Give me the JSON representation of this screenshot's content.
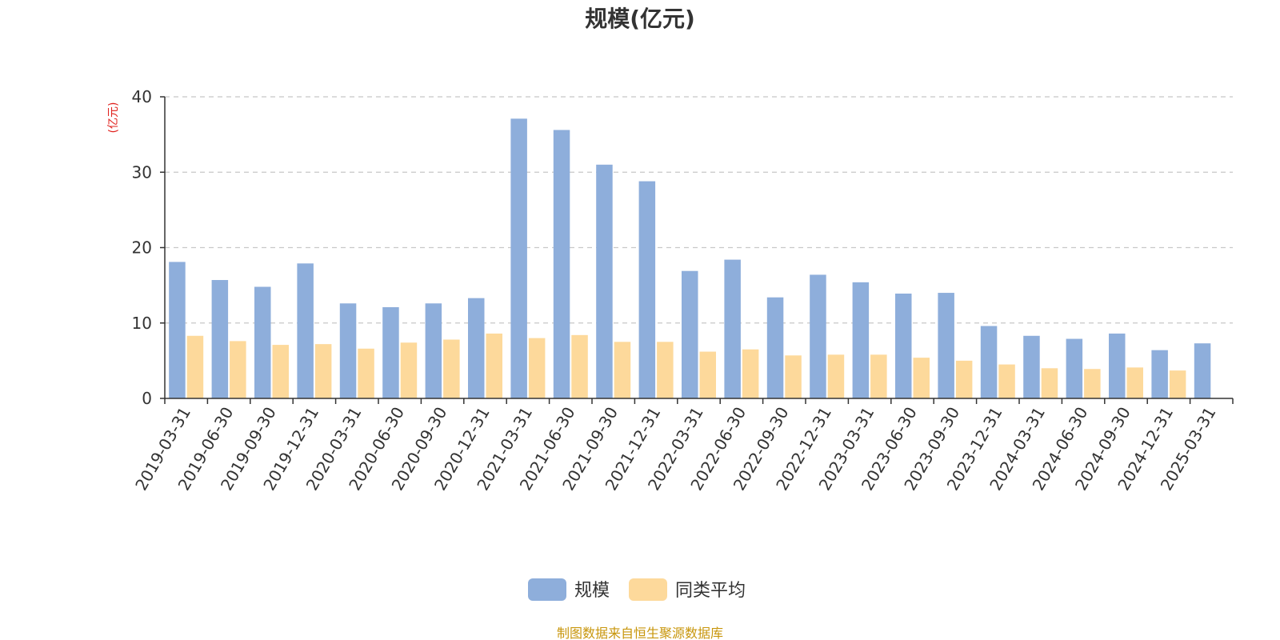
{
  "chart_data": {
    "type": "bar",
    "title": "规模(亿元)",
    "ylabel": "(亿元)",
    "ylim": [
      0,
      40
    ],
    "yticks": [
      0,
      10,
      20,
      30,
      40
    ],
    "grid": true,
    "legend_position": "bottom",
    "categories": [
      "2019-03-31",
      "2019-06-30",
      "2019-09-30",
      "2019-12-31",
      "2020-03-31",
      "2020-06-30",
      "2020-09-30",
      "2020-12-31",
      "2021-03-31",
      "2021-06-30",
      "2021-09-30",
      "2021-12-31",
      "2022-03-31",
      "2022-06-30",
      "2022-09-30",
      "2022-12-31",
      "2023-03-31",
      "2023-06-30",
      "2023-09-30",
      "2023-12-31",
      "2024-03-31",
      "2024-06-30",
      "2024-09-30",
      "2024-12-31",
      "2025-03-31"
    ],
    "series": [
      {
        "name": "规模",
        "color": "#8eaedb",
        "values": [
          18.1,
          15.7,
          14.8,
          17.9,
          12.6,
          12.1,
          12.6,
          13.3,
          37.1,
          35.6,
          31.0,
          28.8,
          16.9,
          18.4,
          13.4,
          16.4,
          15.4,
          13.9,
          14.0,
          9.6,
          8.3,
          7.9,
          8.6,
          6.4,
          7.3
        ]
      },
      {
        "name": "同类平均",
        "color": "#fdd99b",
        "values": [
          8.3,
          7.6,
          7.1,
          7.2,
          6.6,
          7.4,
          7.8,
          8.6,
          8.0,
          8.4,
          7.5,
          7.5,
          6.2,
          6.5,
          5.7,
          5.8,
          5.8,
          5.4,
          5.0,
          4.5,
          4.0,
          3.9,
          4.1,
          3.7,
          null
        ]
      }
    ],
    "ylabel_color": "#e0201c"
  },
  "footer": {
    "source_text": "制图数据来自恒生聚源数据库",
    "source_color": "#c8960c"
  }
}
